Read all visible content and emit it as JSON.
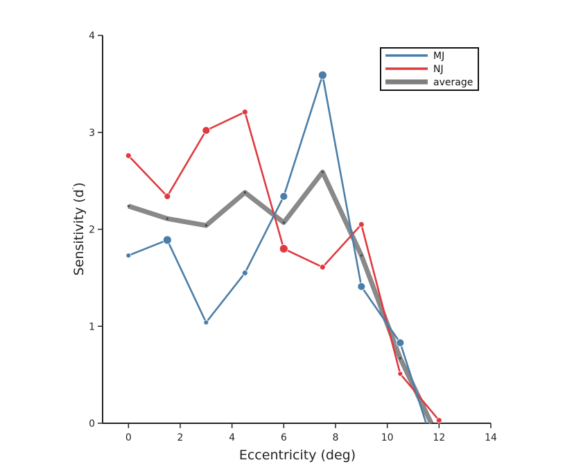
{
  "chart_data": {
    "type": "line",
    "title": "",
    "xlabel": "Eccentricity (deg)",
    "ylabel_main": "Sensitivity (d",
    "ylabel_prime": "′",
    "ylabel_close": ")",
    "xlim": [
      -1,
      14
    ],
    "ylim": [
      0,
      4
    ],
    "xticks": [
      0,
      2,
      4,
      6,
      8,
      10,
      12,
      14
    ],
    "yticks": [
      0,
      1,
      2,
      3,
      4
    ],
    "grid": false,
    "legend_position": "top-right",
    "series": [
      {
        "name": "MJ",
        "color": "#4a7ea8",
        "x": [
          0,
          1.5,
          3,
          4.5,
          6,
          7.5,
          9,
          10.5,
          11.5
        ],
        "y": [
          1.73,
          1.89,
          1.04,
          1.55,
          2.34,
          3.59,
          1.41,
          0.83,
          0
        ],
        "marker_sizes": [
          3.5,
          6,
          3.5,
          4,
          5.5,
          6,
          5.5,
          5.5,
          0
        ]
      },
      {
        "name": "NJ",
        "color": "#e0393e",
        "x": [
          0,
          1.5,
          3,
          4.5,
          6,
          7.5,
          9,
          10.5,
          12
        ],
        "y": [
          2.76,
          2.34,
          3.02,
          3.21,
          1.8,
          1.61,
          2.05,
          0.51,
          0.03
        ],
        "marker_sizes": [
          4,
          4.5,
          5.5,
          4,
          6,
          4,
          4,
          3.5,
          4
        ]
      },
      {
        "name": "average",
        "color": "#7f7f7f",
        "x": [
          0,
          1.5,
          3,
          4.5,
          6,
          7.5,
          9,
          10.5,
          11.7
        ],
        "y": [
          2.24,
          2.11,
          2.04,
          2.38,
          2.07,
          2.59,
          1.73,
          0.67,
          0
        ],
        "marker_sizes": []
      }
    ]
  }
}
